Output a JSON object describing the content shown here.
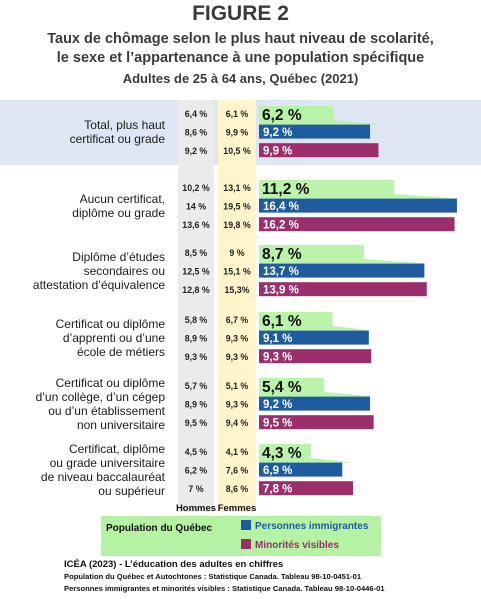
{
  "figure": {
    "label": "FIGURE 2",
    "subtitle_line1": "Taux de chômage selon le plus haut niveau de scolarité,",
    "subtitle_line2": "le sexe et l’appartenance à une population spécifique",
    "subtitle_line3": "Adultes de 25 à 64 ans, Québec (2021)"
  },
  "chart_data": {
    "type": "bar",
    "unit": "%",
    "column_headers": [
      "Hommes",
      "Femmes"
    ],
    "series": [
      {
        "name": "Population du Québec",
        "color": "#b6f2a4"
      },
      {
        "name": "Personnes immigrantes",
        "color": "#1f5b9f"
      },
      {
        "name": "Minorités visibles",
        "color": "#9a2f6b"
      }
    ],
    "categories": [
      {
        "label_lines": [
          "Total, plus haut",
          "certificat ou grade"
        ],
        "highlight": true,
        "rows": [
          {
            "hommes": "6,4 %",
            "femmes": "6,1 %",
            "value": 6.2,
            "value_label": "6,2 %"
          },
          {
            "hommes": "8,6 %",
            "femmes": "9,9 %",
            "value": 9.2,
            "value_label": "9,2 %"
          },
          {
            "hommes": "9,2 %",
            "femmes": "10,5 %",
            "value": 9.9,
            "value_label": "9,9 %"
          }
        ]
      },
      {
        "label_lines": [
          "Aucun certificat,",
          "diplôme ou grade"
        ],
        "highlight": false,
        "rows": [
          {
            "hommes": "10,2 %",
            "femmes": "13,1 %",
            "value": 11.2,
            "value_label": "11,2 %"
          },
          {
            "hommes": "14 %",
            "femmes": "19,5 %",
            "value": 16.4,
            "value_label": "16,4 %"
          },
          {
            "hommes": "13,6 %",
            "femmes": "19,8 %",
            "value": 16.2,
            "value_label": "16,2 %"
          }
        ]
      },
      {
        "label_lines": [
          "Diplôme d’études",
          "secondaires ou",
          "attestation d’équivalence"
        ],
        "highlight": false,
        "rows": [
          {
            "hommes": "8,5 %",
            "femmes": "9 %",
            "value": 8.7,
            "value_label": "8,7 %"
          },
          {
            "hommes": "12,5 %",
            "femmes": "15,1 %",
            "value": 13.7,
            "value_label": "13,7 %"
          },
          {
            "hommes": "12,8 %",
            "femmes": "15,3%",
            "value": 13.9,
            "value_label": "13,9 %"
          }
        ]
      },
      {
        "label_lines": [
          "Certificat ou diplôme",
          "d’apprenti ou d’une",
          "école de métiers"
        ],
        "highlight": false,
        "rows": [
          {
            "hommes": "5,8 %",
            "femmes": "6,7 %",
            "value": 6.1,
            "value_label": "6,1 %"
          },
          {
            "hommes": "8,9 %",
            "femmes": "9,3 %",
            "value": 9.1,
            "value_label": "9,1 %"
          },
          {
            "hommes": "9,3 %",
            "femmes": "9,3 %",
            "value": 9.3,
            "value_label": "9,3 %"
          }
        ]
      },
      {
        "label_lines": [
          "Certificat ou diplôme",
          "d’un collège, d’un cégep",
          "ou d’un établissement",
          "non universitaire"
        ],
        "highlight": false,
        "rows": [
          {
            "hommes": "5,7 %",
            "femmes": "5,1 %",
            "value": 5.4,
            "value_label": "5,4 %"
          },
          {
            "hommes": "8,9 %",
            "femmes": "9,3 %",
            "value": 9.2,
            "value_label": "9,2 %"
          },
          {
            "hommes": "9,5 %",
            "femmes": "9,4 %",
            "value": 9.5,
            "value_label": "9,5 %"
          }
        ]
      },
      {
        "label_lines": [
          "Certificat, diplôme",
          "ou grade universitaire",
          "de niveau baccalauréat",
          "ou supérieur"
        ],
        "highlight": false,
        "rows": [
          {
            "hommes": "4,5 %",
            "femmes": "4,1 %",
            "value": 4.3,
            "value_label": "4,3 %"
          },
          {
            "hommes": "6,2 %",
            "femmes": "7,6 %",
            "value": 6.9,
            "value_label": "6,9 %"
          },
          {
            "hommes": "7 %",
            "femmes": "8,6 %",
            "value": 7.8,
            "value_label": "7,8 %"
          }
        ]
      }
    ]
  },
  "colors": {
    "highlight_band": "#dde6f2",
    "femmes_column": "#fff4cc",
    "hommes_column": "#ebebeb",
    "population_fill": "#b6f2a4"
  },
  "footer": {
    "line1": "ICÉA (2023) - L’éducation des adultes en chiffres",
    "line2": "Population du Québec et Autochtones : Statistique Canada. Tableau 98-10-0451-01",
    "line3": "Personnes immigrantes et minorités visibles : Statistique Canada. Tableau 98-10-0446-01"
  }
}
